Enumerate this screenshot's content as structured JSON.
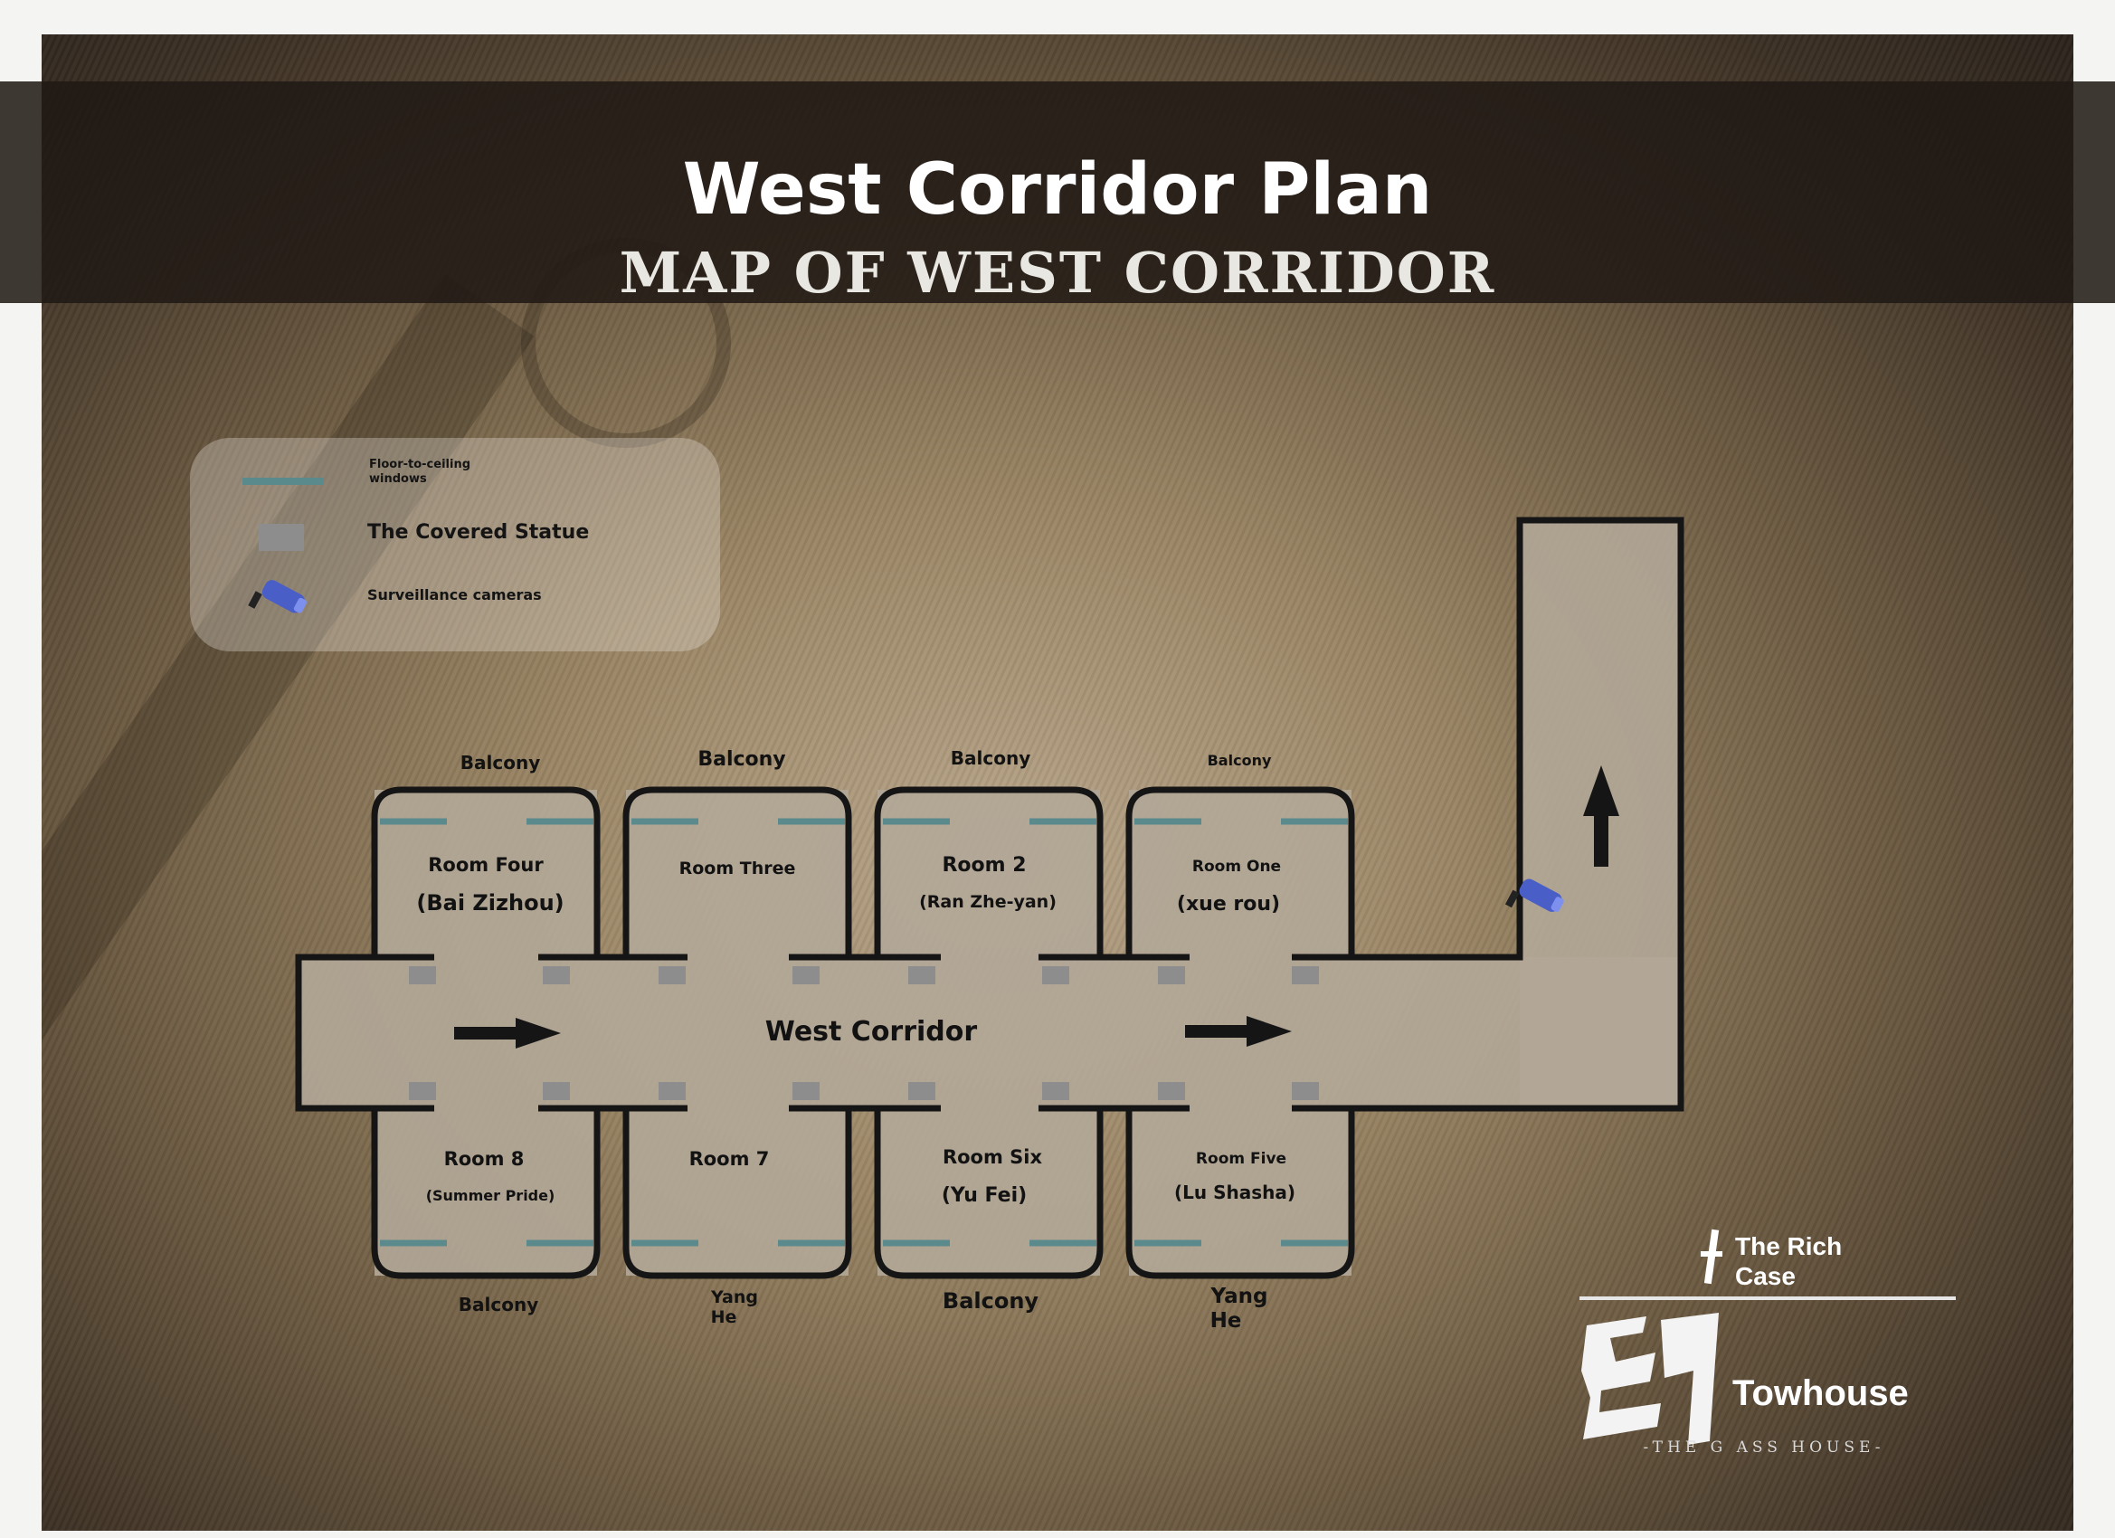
{
  "header": {
    "title": "West Corridor Plan",
    "subtitle": "MAP OF WEST CORRIDOR"
  },
  "legend": {
    "windows_label": "Floor-to-ceiling windows",
    "statue_label": "The Covered Statue",
    "cameras_label": "Surveillance cameras",
    "window_color": "#5a8a8c",
    "statue_color": "#8d8d8d",
    "camera_color": "#4a5ec8"
  },
  "map": {
    "corridor_label": "West Corridor",
    "rooms_top": [
      {
        "name": "Room Four",
        "occupant": "(Bai Zizhou)",
        "outside": "Balcony"
      },
      {
        "name": "Room Three",
        "occupant": "",
        "outside": "Balcony"
      },
      {
        "name": "Room 2",
        "occupant": "(Ran Zhe-yan)",
        "outside": "Balcony"
      },
      {
        "name": "Room One",
        "occupant": "(xue rou)",
        "outside": "Balcony"
      }
    ],
    "rooms_bottom": [
      {
        "name": "Room 8",
        "occupant": "(Summer Pride)",
        "outside": "Balcony"
      },
      {
        "name": "Room 7",
        "occupant": "",
        "outside": "Yang He"
      },
      {
        "name": "Room Six",
        "occupant": "(Yu Fei)",
        "outside": "Balcony"
      },
      {
        "name": "Room Five",
        "occupant": "(Lu Shasha)",
        "outside": "Yang He"
      }
    ],
    "floor_color": "#b3a798",
    "wall_color": "#151515"
  },
  "brand": {
    "top_line1": "The Rich",
    "top_line2": "Case",
    "name": "Towhouse",
    "tagline": "-THE G ASS HOUSE-"
  }
}
